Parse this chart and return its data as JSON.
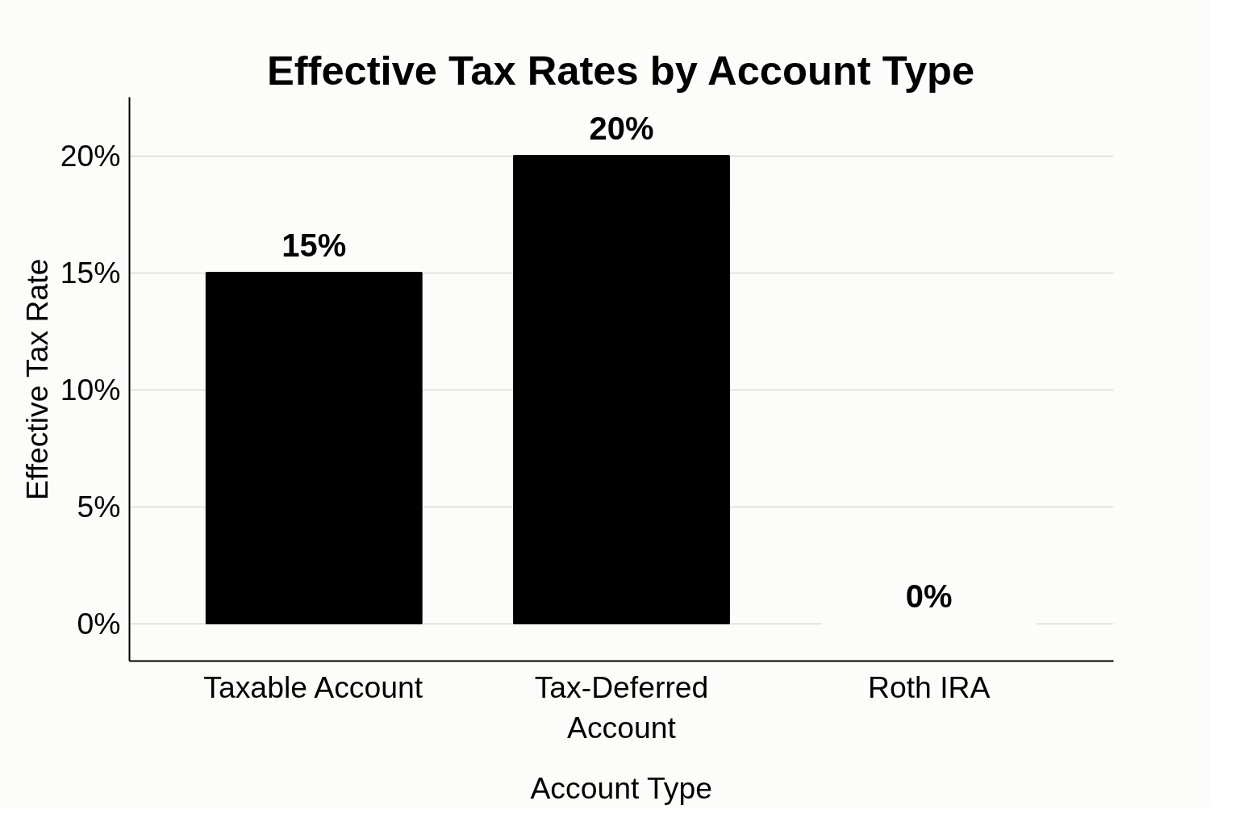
{
  "chart_data": {
    "type": "bar",
    "title": "Effective Tax Rates by Account Type",
    "xlabel": "Account Type",
    "ylabel": "Effective Tax Rate",
    "categories": [
      "Taxable Account",
      "Tax-Deferred Account",
      "Roth IRA"
    ],
    "values": [
      15,
      20,
      0
    ],
    "colors": [
      "#000000",
      "#000000",
      "#ffffff"
    ],
    "value_labels": [
      "15%",
      "20%",
      "0%"
    ],
    "ylim": [
      -1.6,
      22.5
    ],
    "yticks": [
      {
        "value": 0,
        "label": "0%"
      },
      {
        "value": 5,
        "label": "5%"
      },
      {
        "value": 10,
        "label": "10%"
      },
      {
        "value": 15,
        "label": "15%"
      },
      {
        "value": 20,
        "label": "20%"
      }
    ],
    "grid": "y"
  }
}
